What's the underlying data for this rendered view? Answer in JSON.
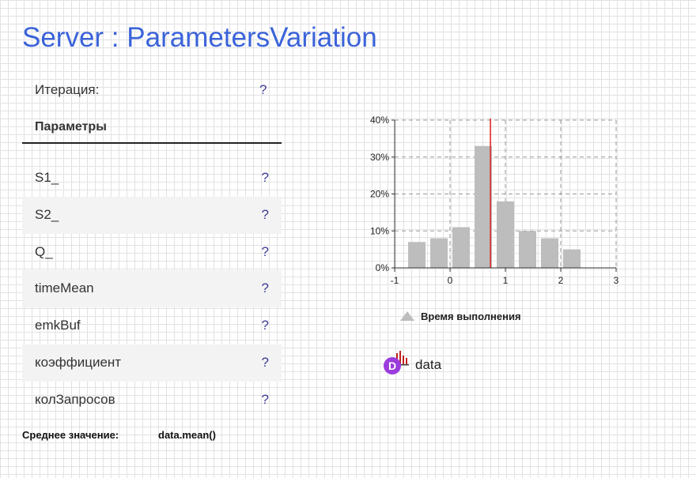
{
  "title": "Server : ParametersVariation",
  "iteration": {
    "label": "Итерация:",
    "value": "?"
  },
  "parameters": {
    "header": "Параметры",
    "rows": [
      {
        "name": "S1_",
        "value": "?"
      },
      {
        "name": "S2_",
        "value": "?"
      },
      {
        "name": "Q_",
        "value": "?"
      },
      {
        "name": "timeMean",
        "value": "?"
      },
      {
        "name": "emkBuf",
        "value": "?"
      },
      {
        "name": "коэффициент",
        "value": "?"
      },
      {
        "name": "колЗапросов",
        "value": "?"
      }
    ]
  },
  "mean": {
    "label": "Среднее значение:",
    "expression": "data.mean()"
  },
  "dataset": {
    "name": "data",
    "icon": "dataset-icon"
  },
  "chart_data": {
    "type": "bar",
    "title": "",
    "bin_width": 0.4,
    "series": [
      {
        "name": "Время выполнения",
        "color": "#bdbdbd"
      }
    ],
    "bins": [
      {
        "x0": -0.8,
        "x1": -0.4,
        "value": 7
      },
      {
        "x0": -0.4,
        "x1": 0.0,
        "value": 8
      },
      {
        "x0": 0.0,
        "x1": 0.4,
        "value": 11
      },
      {
        "x0": 0.4,
        "x1": 0.8,
        "value": 33
      },
      {
        "x0": 0.8,
        "x1": 1.2,
        "value": 18
      },
      {
        "x0": 1.2,
        "x1": 1.6,
        "value": 10
      },
      {
        "x0": 1.6,
        "x1": 2.0,
        "value": 8
      },
      {
        "x0": 2.0,
        "x1": 2.4,
        "value": 5
      }
    ],
    "mean_line": {
      "x": 0.73,
      "color": "#e02020"
    },
    "xlim": [
      -1,
      3
    ],
    "ylim": [
      0,
      40
    ],
    "xticks": [
      "-1",
      "0",
      "1",
      "2",
      "3"
    ],
    "yticks": [
      "0%",
      "10%",
      "20%",
      "30%",
      "40%"
    ],
    "grid": true,
    "legend_position": "bottom-left"
  }
}
